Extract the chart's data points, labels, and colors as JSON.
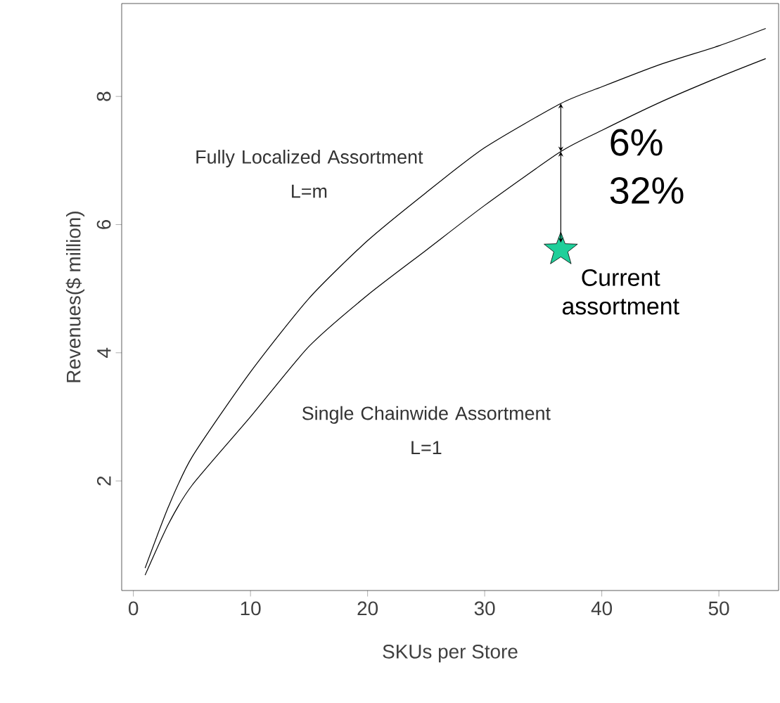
{
  "chart_data": {
    "type": "line",
    "xlabel": "SKUs per Store",
    "ylabel": "Revenues($ million)",
    "xlim": [
      -1.0,
      55.1
    ],
    "ylim": [
      0.29,
      9.45
    ],
    "xticks": [
      0,
      10,
      20,
      30,
      40,
      50
    ],
    "yticks": [
      2,
      4,
      6,
      8
    ],
    "grid": false,
    "marker": "none",
    "x": [
      1,
      3,
      5,
      10,
      15,
      20,
      25,
      30,
      36.5,
      40,
      45,
      50,
      54
    ],
    "series": [
      {
        "color": "#000000",
        "values": [
          0.64,
          1.6,
          2.37,
          3.7,
          4.85,
          5.75,
          6.5,
          7.2,
          7.89,
          8.15,
          8.5,
          8.79,
          9.06
        ]
      },
      {
        "color": "#000000",
        "values": [
          0.53,
          1.33,
          1.93,
          3.0,
          4.1,
          4.9,
          5.6,
          6.3,
          7.14,
          7.47,
          7.91,
          8.3,
          8.59
        ]
      },
      {
        "type": "scatter",
        "marker": "star",
        "color": "#1fcf9a",
        "x": [
          36.5
        ],
        "values": [
          5.61
        ]
      }
    ],
    "annotations": [
      "Fully Localized Assortment",
      "L=m",
      "Single Chainwide Assortment",
      "L=1",
      {
        "text": "6%",
        "x": 36.5,
        "y": 7.89
      },
      {
        "text": "32%",
        "x": 36.5,
        "y": 7.14
      },
      "Current assortment"
    ]
  }
}
